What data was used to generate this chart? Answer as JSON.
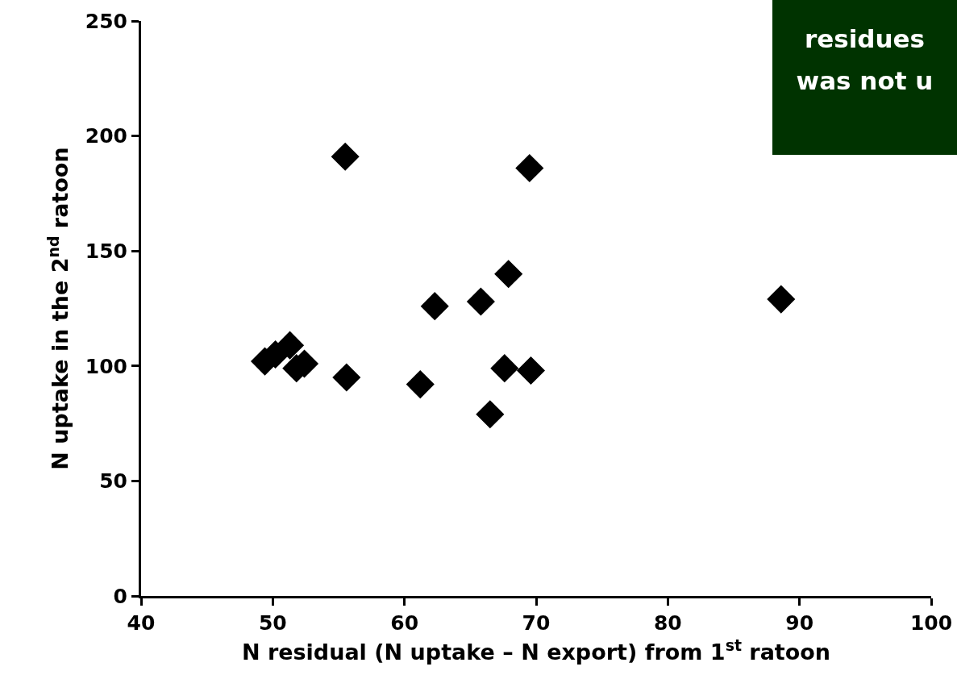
{
  "chart_data": {
    "type": "scatter",
    "xlabel": "N residual (N uptake – N export) from 1$^{st}$ ratoon",
    "ylabel": "N uptake in the 2$^{nd}$ ratoon",
    "x": [
      55.5,
      69.5,
      67.9,
      65.8,
      62.3,
      49.4,
      50.2,
      51.3,
      51.8,
      52.4,
      55.6,
      61.2,
      67.6,
      69.6,
      66.5,
      88.6
    ],
    "series": [
      {
        "color": "#000000",
        "values": [
          191,
          186,
          140,
          128,
          126,
          102,
          105,
          109,
          99,
          101,
          95,
          92,
          99,
          98,
          79,
          129
        ]
      }
    ],
    "xlim": [
      40,
      100
    ],
    "xticks": [
      40,
      50,
      60,
      70,
      80,
      90,
      100
    ],
    "ylim": [
      0,
      250
    ],
    "yticks": [
      0,
      50,
      100,
      150,
      200,
      250
    ],
    "grid": false,
    "marker": "diamond",
    "annotations": [
      "residues\nwas not u"
    ]
  }
}
